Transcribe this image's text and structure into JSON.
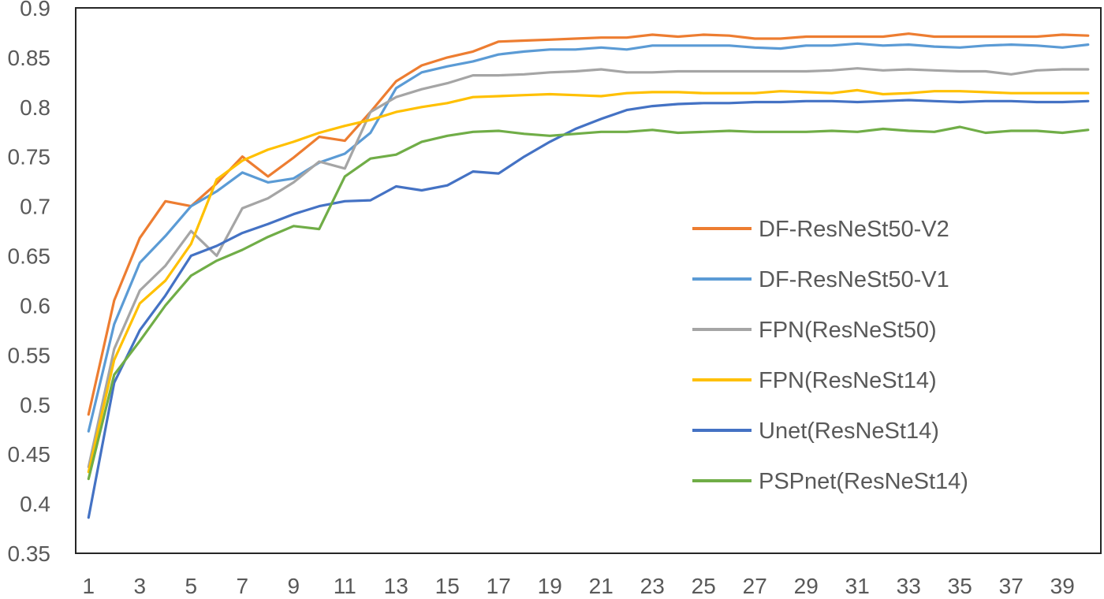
{
  "page": {
    "background": "#ffffff"
  },
  "chart_data": {
    "type": "line",
    "title": "",
    "xlabel": "",
    "ylabel": "",
    "grid": false,
    "legend_position": "inside-right",
    "axis_color": "#262626",
    "tick_label_color": "#595959",
    "legend_text_color": "#595959",
    "ylim": [
      0.35,
      0.9
    ],
    "y_tick_values": [
      0.9,
      0.85,
      0.8,
      0.75,
      0.7,
      0.65,
      0.6,
      0.55,
      0.5,
      0.45,
      0.4,
      0.35
    ],
    "y_tick_labels": [
      "0.9",
      "0.85",
      "0.8",
      "0.75",
      "0.7",
      "0.65",
      "0.6",
      "0.55",
      "0.5",
      "0.45",
      "0.4",
      "0.35"
    ],
    "x": [
      1,
      2,
      3,
      4,
      5,
      6,
      7,
      8,
      9,
      10,
      11,
      12,
      13,
      14,
      15,
      16,
      17,
      18,
      19,
      20,
      21,
      22,
      23,
      24,
      25,
      26,
      27,
      28,
      29,
      30,
      31,
      32,
      33,
      34,
      35,
      36,
      37,
      38,
      39,
      40
    ],
    "x_tick_values": [
      1,
      3,
      5,
      7,
      9,
      11,
      13,
      15,
      17,
      19,
      21,
      23,
      25,
      27,
      29,
      31,
      33,
      35,
      37,
      39
    ],
    "x_tick_labels": [
      "1",
      "3",
      "5",
      "7",
      "9",
      "11",
      "13",
      "15",
      "17",
      "19",
      "21",
      "23",
      "25",
      "27",
      "29",
      "31",
      "33",
      "35",
      "37",
      "39"
    ],
    "series": [
      {
        "name": "DF-ResNeSt50-V2",
        "color": "#ED7D31",
        "values": [
          0.49,
          0.605,
          0.668,
          0.705,
          0.7,
          0.723,
          0.75,
          0.73,
          0.749,
          0.77,
          0.766,
          0.795,
          0.826,
          0.842,
          0.85,
          0.856,
          0.866,
          0.867,
          0.868,
          0.869,
          0.87,
          0.87,
          0.873,
          0.871,
          0.873,
          0.872,
          0.869,
          0.869,
          0.871,
          0.871,
          0.871,
          0.871,
          0.874,
          0.871,
          0.871,
          0.871,
          0.871,
          0.871,
          0.873,
          0.872
        ]
      },
      {
        "name": "DF-ResNeSt50-V1",
        "color": "#5B9BD5",
        "values": [
          0.473,
          0.581,
          0.643,
          0.67,
          0.7,
          0.715,
          0.734,
          0.724,
          0.728,
          0.744,
          0.753,
          0.774,
          0.819,
          0.835,
          0.841,
          0.846,
          0.853,
          0.856,
          0.858,
          0.858,
          0.86,
          0.858,
          0.862,
          0.862,
          0.862,
          0.862,
          0.86,
          0.859,
          0.862,
          0.862,
          0.864,
          0.862,
          0.863,
          0.861,
          0.86,
          0.862,
          0.863,
          0.862,
          0.86,
          0.863
        ]
      },
      {
        "name": "FPN(ResNeSt50)",
        "color": "#A5A5A5",
        "values": [
          0.437,
          0.556,
          0.615,
          0.64,
          0.675,
          0.65,
          0.698,
          0.708,
          0.724,
          0.745,
          0.738,
          0.795,
          0.81,
          0.818,
          0.824,
          0.832,
          0.832,
          0.833,
          0.835,
          0.836,
          0.838,
          0.835,
          0.835,
          0.836,
          0.836,
          0.836,
          0.836,
          0.836,
          0.836,
          0.837,
          0.839,
          0.837,
          0.838,
          0.837,
          0.836,
          0.836,
          0.833,
          0.837,
          0.838,
          0.838
        ]
      },
      {
        "name": "FPN(ResNeSt14)",
        "color": "#FFC000",
        "values": [
          0.432,
          0.545,
          0.602,
          0.625,
          0.662,
          0.727,
          0.746,
          0.757,
          0.765,
          0.774,
          0.781,
          0.787,
          0.795,
          0.8,
          0.804,
          0.81,
          0.811,
          0.812,
          0.813,
          0.812,
          0.811,
          0.814,
          0.815,
          0.815,
          0.814,
          0.814,
          0.814,
          0.816,
          0.815,
          0.814,
          0.817,
          0.813,
          0.814,
          0.816,
          0.816,
          0.815,
          0.814,
          0.814,
          0.814,
          0.814
        ]
      },
      {
        "name": "Unet(ResNeSt14)",
        "color": "#4472C4",
        "values": [
          0.386,
          0.522,
          0.575,
          0.61,
          0.65,
          0.66,
          0.673,
          0.682,
          0.692,
          0.7,
          0.705,
          0.706,
          0.72,
          0.716,
          0.721,
          0.735,
          0.733,
          0.75,
          0.765,
          0.778,
          0.788,
          0.797,
          0.801,
          0.803,
          0.804,
          0.804,
          0.805,
          0.805,
          0.806,
          0.806,
          0.805,
          0.806,
          0.807,
          0.806,
          0.805,
          0.806,
          0.806,
          0.805,
          0.805,
          0.806
        ]
      },
      {
        "name": "PSPnet(ResNeSt14)",
        "color": "#70AD47",
        "values": [
          0.425,
          0.53,
          0.564,
          0.6,
          0.63,
          0.645,
          0.656,
          0.669,
          0.68,
          0.677,
          0.73,
          0.748,
          0.752,
          0.765,
          0.771,
          0.775,
          0.776,
          0.773,
          0.771,
          0.773,
          0.775,
          0.775,
          0.777,
          0.774,
          0.775,
          0.776,
          0.775,
          0.775,
          0.775,
          0.776,
          0.775,
          0.778,
          0.776,
          0.775,
          0.78,
          0.774,
          0.776,
          0.776,
          0.774,
          0.777
        ]
      }
    ]
  }
}
